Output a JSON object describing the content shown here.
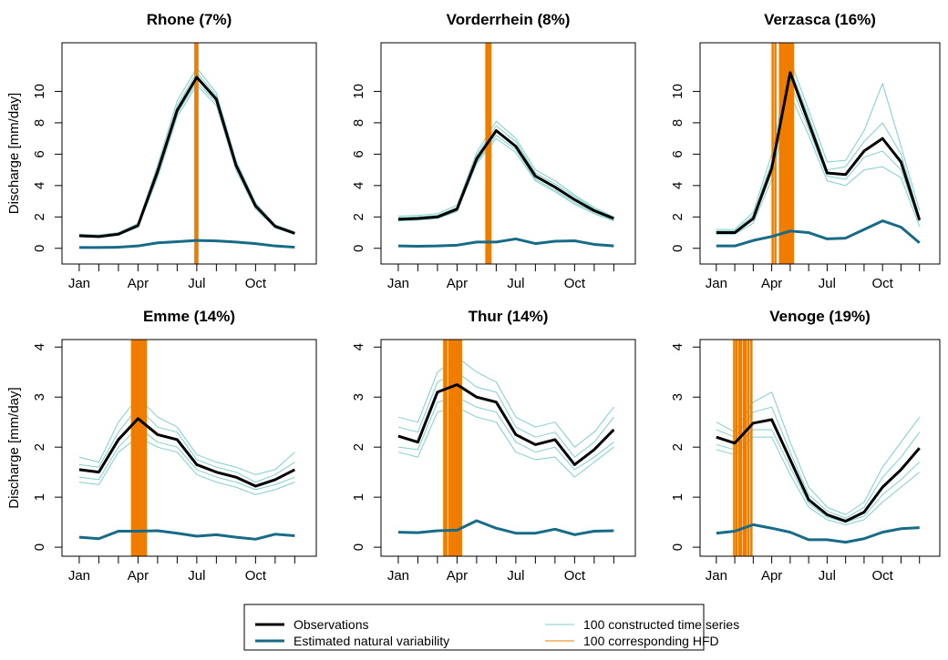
{
  "chart_data": [
    {
      "type": "line",
      "title": "Rhone (7%)",
      "ylabel": "Discharge [mm/day]",
      "x": [
        1,
        2,
        3,
        4,
        5,
        6,
        7,
        8,
        9,
        10,
        11,
        12
      ],
      "xlim": [
        0.12,
        13.1
      ],
      "xticks": [
        {
          "value": 1,
          "label": "Jan"
        },
        {
          "value": 4,
          "label": "Apr"
        },
        {
          "value": 7,
          "label": "Jul"
        },
        {
          "value": 10,
          "label": "Oct"
        }
      ],
      "xminorticks": [
        2,
        3,
        5,
        6,
        8,
        9,
        11,
        12
      ],
      "ylim": [
        -1,
        13.1
      ],
      "yticks": [
        0,
        2,
        4,
        6,
        8,
        10
      ],
      "ensemble": {
        "color": "#7ecfcc",
        "values": [
          [
            0.9,
            0.85,
            1.0,
            1.6,
            5.3,
            9.4,
            11.5,
            9.9,
            5.6,
            2.9,
            1.5,
            1.05
          ],
          [
            0.75,
            0.7,
            0.85,
            1.35,
            4.5,
            8.4,
            10.4,
            9.1,
            5.0,
            2.5,
            1.3,
            0.9
          ],
          [
            0.85,
            0.8,
            0.95,
            1.5,
            5.1,
            9.1,
            11.2,
            9.7,
            5.4,
            2.8,
            1.45,
            1.0
          ],
          [
            0.8,
            0.72,
            0.88,
            1.4,
            4.7,
            8.6,
            10.6,
            9.3,
            5.2,
            2.6,
            1.35,
            0.92
          ]
        ]
      },
      "hfd": {
        "color": "#ef7d00",
        "x": [
          6.93,
          6.95,
          6.97,
          6.99,
          7.01,
          7.03
        ]
      },
      "series": [
        {
          "color": "#176b87",
          "values": [
            0.05,
            0.05,
            0.07,
            0.15,
            0.35,
            0.42,
            0.5,
            0.47,
            0.4,
            0.3,
            0.15,
            0.07
          ]
        },
        {
          "color": "#000000",
          "values": [
            0.8,
            0.75,
            0.9,
            1.45,
            4.9,
            8.8,
            10.9,
            9.5,
            5.3,
            2.7,
            1.4,
            0.95
          ]
        }
      ]
    },
    {
      "type": "line",
      "title": "Vorderrhein (8%)",
      "x": [
        1,
        2,
        3,
        4,
        5,
        6,
        7,
        8,
        9,
        10,
        11,
        12
      ],
      "xlim": [
        0.12,
        13.1
      ],
      "xticks": [
        {
          "value": 1,
          "label": "Jan"
        },
        {
          "value": 4,
          "label": "Apr"
        },
        {
          "value": 7,
          "label": "Jul"
        },
        {
          "value": 10,
          "label": "Oct"
        }
      ],
      "xminorticks": [
        2,
        3,
        5,
        6,
        8,
        9,
        11,
        12
      ],
      "ylim": [
        -1,
        13.1
      ],
      "yticks": [
        0,
        2,
        4,
        6,
        8,
        10
      ],
      "ensemble": {
        "color": "#7ecfcc",
        "values": [
          [
            2.05,
            2.1,
            2.2,
            2.75,
            6.1,
            8.1,
            7.0,
            5.0,
            4.3,
            3.4,
            2.6,
            2.0
          ],
          [
            1.75,
            1.8,
            1.9,
            2.35,
            5.4,
            7.0,
            6.1,
            4.3,
            3.6,
            2.8,
            2.2,
            1.75
          ],
          [
            1.95,
            2.0,
            2.1,
            2.6,
            5.9,
            7.8,
            6.8,
            4.8,
            4.1,
            3.3,
            2.5,
            1.95
          ],
          [
            1.8,
            1.85,
            1.95,
            2.4,
            5.5,
            7.2,
            6.3,
            4.4,
            3.7,
            2.9,
            2.3,
            1.8
          ]
        ]
      },
      "hfd": {
        "color": "#ef7d00",
        "x": [
          5.5,
          5.54,
          5.58,
          5.62,
          5.66,
          5.7
        ]
      },
      "series": [
        {
          "color": "#176b87",
          "values": [
            0.15,
            0.13,
            0.15,
            0.2,
            0.4,
            0.4,
            0.6,
            0.3,
            0.45,
            0.48,
            0.25,
            0.15
          ]
        },
        {
          "color": "#000000",
          "values": [
            1.85,
            1.9,
            2.0,
            2.5,
            5.7,
            7.5,
            6.5,
            4.6,
            3.9,
            3.1,
            2.4,
            1.9
          ]
        }
      ]
    },
    {
      "type": "line",
      "title": "Verzasca (16%)",
      "x": [
        1,
        2,
        3,
        4,
        5,
        6,
        7,
        8,
        9,
        10,
        11,
        12
      ],
      "xlim": [
        0.12,
        13.1
      ],
      "xticks": [
        {
          "value": 1,
          "label": "Jan"
        },
        {
          "value": 4,
          "label": "Apr"
        },
        {
          "value": 7,
          "label": "Jul"
        },
        {
          "value": 10,
          "label": "Oct"
        }
      ],
      "xminorticks": [
        2,
        3,
        5,
        6,
        8,
        9,
        11,
        12
      ],
      "ylim": [
        -1,
        13.1
      ],
      "yticks": [
        0,
        2,
        4,
        6,
        8,
        10
      ],
      "ensemble": {
        "color": "#7ecfcc",
        "values": [
          [
            1.2,
            1.2,
            2.3,
            6.0,
            12.0,
            8.8,
            5.5,
            5.6,
            7.5,
            10.5,
            6.5,
            2.4
          ],
          [
            0.9,
            0.9,
            1.6,
            4.4,
            9.8,
            7.2,
            4.3,
            4.0,
            5.0,
            5.2,
            4.5,
            1.4
          ],
          [
            1.1,
            1.1,
            2.1,
            5.5,
            11.5,
            8.4,
            5.0,
            5.2,
            6.8,
            8.0,
            6.0,
            2.0
          ],
          [
            1.0,
            1.0,
            1.8,
            4.8,
            10.5,
            7.6,
            4.6,
            4.4,
            5.8,
            6.2,
            5.0,
            1.7
          ]
        ]
      },
      "hfd": {
        "color": "#ef7d00",
        "x": [
          4.05,
          4.2,
          4.45,
          4.55,
          4.65,
          4.75,
          4.85,
          4.95,
          5.05,
          5.15
        ]
      },
      "series": [
        {
          "color": "#176b87",
          "values": [
            0.15,
            0.15,
            0.5,
            0.75,
            1.1,
            1.0,
            0.6,
            0.65,
            1.2,
            1.75,
            1.35,
            0.35
          ]
        },
        {
          "color": "#000000",
          "values": [
            1.0,
            1.0,
            1.9,
            5.1,
            11.2,
            8.0,
            4.8,
            4.7,
            6.2,
            7.0,
            5.5,
            1.8
          ]
        }
      ]
    },
    {
      "type": "line",
      "title": "Emme (14%)",
      "ylabel": "Discharge [mm/day]",
      "x": [
        1,
        2,
        3,
        4,
        5,
        6,
        7,
        8,
        9,
        10,
        11,
        12
      ],
      "xlim": [
        0.12,
        13.1
      ],
      "xticks": [
        {
          "value": 1,
          "label": "Jan"
        },
        {
          "value": 4,
          "label": "Apr"
        },
        {
          "value": 7,
          "label": "Jul"
        },
        {
          "value": 10,
          "label": "Oct"
        }
      ],
      "xminorticks": [
        2,
        3,
        5,
        6,
        8,
        9,
        11,
        12
      ],
      "ylim": [
        -0.18,
        4.15
      ],
      "yticks": [
        0,
        1,
        2,
        3,
        4
      ],
      "ensemble": {
        "color": "#7ecfcc",
        "values": [
          [
            1.8,
            1.7,
            2.5,
            3.0,
            2.6,
            2.4,
            1.85,
            1.7,
            1.6,
            1.45,
            1.55,
            1.9
          ],
          [
            1.3,
            1.25,
            1.9,
            2.2,
            2.0,
            1.9,
            1.45,
            1.3,
            1.2,
            1.05,
            1.15,
            1.3
          ],
          [
            1.65,
            1.6,
            2.3,
            2.8,
            2.4,
            2.3,
            1.75,
            1.6,
            1.5,
            1.3,
            1.45,
            1.7
          ],
          [
            1.4,
            1.35,
            2.0,
            2.4,
            2.1,
            2.0,
            1.55,
            1.4,
            1.3,
            1.15,
            1.25,
            1.4
          ]
        ]
      },
      "hfd": {
        "color": "#ef7d00",
        "x": [
          3.7,
          3.8,
          3.9,
          4.0,
          4.1,
          4.2,
          4.3,
          4.4
        ]
      },
      "series": [
        {
          "color": "#176b87",
          "values": [
            0.2,
            0.17,
            0.32,
            0.32,
            0.33,
            0.28,
            0.22,
            0.25,
            0.2,
            0.16,
            0.26,
            0.23
          ]
        },
        {
          "color": "#000000",
          "values": [
            1.55,
            1.5,
            2.15,
            2.57,
            2.25,
            2.15,
            1.65,
            1.5,
            1.4,
            1.22,
            1.35,
            1.55
          ]
        }
      ]
    },
    {
      "type": "line",
      "title": "Thur (14%)",
      "x": [
        1,
        2,
        3,
        4,
        5,
        6,
        7,
        8,
        9,
        10,
        11,
        12
      ],
      "xlim": [
        0.12,
        13.1
      ],
      "xticks": [
        {
          "value": 1,
          "label": "Jan"
        },
        {
          "value": 4,
          "label": "Apr"
        },
        {
          "value": 7,
          "label": "Jul"
        },
        {
          "value": 10,
          "label": "Oct"
        }
      ],
      "xminorticks": [
        2,
        3,
        5,
        6,
        8,
        9,
        11,
        12
      ],
      "ylim": [
        -0.18,
        4.15
      ],
      "yticks": [
        0,
        1,
        2,
        3,
        4
      ],
      "ensemble": {
        "color": "#7ecfcc",
        "values": [
          [
            2.6,
            2.5,
            3.5,
            3.8,
            3.5,
            3.3,
            2.6,
            2.4,
            2.5,
            2.0,
            2.3,
            2.8
          ],
          [
            1.9,
            1.8,
            2.7,
            2.8,
            2.6,
            2.5,
            1.9,
            1.75,
            1.8,
            1.4,
            1.7,
            2.0
          ],
          [
            2.4,
            2.3,
            3.3,
            3.5,
            3.2,
            3.1,
            2.4,
            2.2,
            2.3,
            1.8,
            2.1,
            2.6
          ],
          [
            2.0,
            1.95,
            2.9,
            3.0,
            2.8,
            2.7,
            2.1,
            1.9,
            2.0,
            1.55,
            1.8,
            2.1
          ]
        ]
      },
      "hfd": {
        "color": "#ef7d00",
        "x": [
          3.35,
          3.45,
          3.6,
          3.7,
          3.8,
          3.9,
          4.0,
          4.1,
          4.2
        ]
      },
      "series": [
        {
          "color": "#176b87",
          "values": [
            0.3,
            0.29,
            0.33,
            0.34,
            0.53,
            0.38,
            0.28,
            0.28,
            0.36,
            0.25,
            0.32,
            0.33
          ]
        },
        {
          "color": "#000000",
          "values": [
            2.22,
            2.1,
            3.1,
            3.25,
            3.0,
            2.9,
            2.25,
            2.05,
            2.15,
            1.65,
            1.95,
            2.35
          ]
        }
      ]
    },
    {
      "type": "line",
      "title": "Venoge (19%)",
      "x": [
        1,
        2,
        3,
        4,
        5,
        6,
        7,
        8,
        9,
        10,
        11,
        12
      ],
      "xlim": [
        0.12,
        13.1
      ],
      "xticks": [
        {
          "value": 1,
          "label": "Jan"
        },
        {
          "value": 4,
          "label": "Apr"
        },
        {
          "value": 7,
          "label": "Jul"
        },
        {
          "value": 10,
          "label": "Oct"
        }
      ],
      "xminorticks": [
        2,
        3,
        5,
        6,
        8,
        9,
        11,
        12
      ],
      "ylim": [
        -0.18,
        4.15
      ],
      "yticks": [
        0,
        1,
        2,
        3,
        4
      ],
      "ensemble": {
        "color": "#7ecfcc",
        "values": [
          [
            2.5,
            2.3,
            2.9,
            3.1,
            2.1,
            1.2,
            0.8,
            0.65,
            0.9,
            1.6,
            2.1,
            2.6
          ],
          [
            1.95,
            1.85,
            2.2,
            2.2,
            1.45,
            0.8,
            0.55,
            0.45,
            0.55,
            0.9,
            1.2,
            1.5
          ],
          [
            2.35,
            2.2,
            2.7,
            2.8,
            1.9,
            1.05,
            0.72,
            0.58,
            0.8,
            1.4,
            1.8,
            2.3
          ],
          [
            2.05,
            1.95,
            2.35,
            2.35,
            1.6,
            0.88,
            0.6,
            0.5,
            0.62,
            1.05,
            1.35,
            1.7
          ]
        ]
      },
      "hfd": {
        "color": "#ef7d00",
        "x": [
          1.97,
          2.1,
          2.25,
          2.35,
          2.5,
          2.6,
          2.75,
          2.9
        ]
      },
      "series": [
        {
          "color": "#176b87",
          "values": [
            0.28,
            0.32,
            0.45,
            0.38,
            0.3,
            0.15,
            0.15,
            0.1,
            0.17,
            0.3,
            0.37,
            0.39
          ]
        },
        {
          "color": "#000000",
          "values": [
            2.2,
            2.08,
            2.48,
            2.55,
            1.75,
            0.95,
            0.65,
            0.52,
            0.7,
            1.2,
            1.55,
            1.98
          ]
        }
      ]
    }
  ],
  "legend": [
    {
      "label": "Observations",
      "color": "#000000"
    },
    {
      "label": "Estimated natural variability",
      "color": "#176b87"
    },
    {
      "label": "100 constructed time series",
      "color": "#7ecfcc"
    },
    {
      "label": "100 corresponding HFD",
      "color": "#ef7d00"
    }
  ]
}
